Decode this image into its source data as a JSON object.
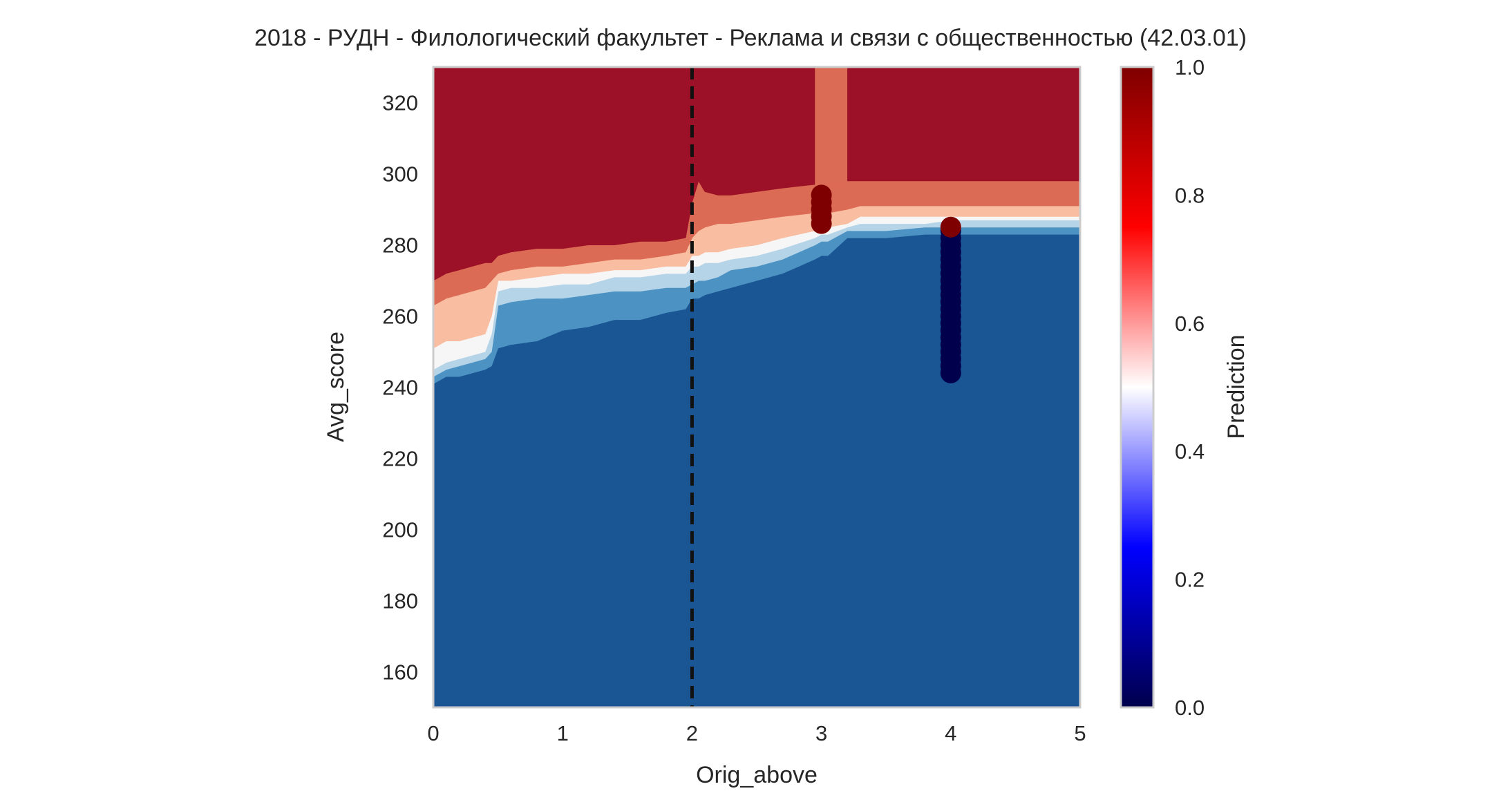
{
  "chart_data": {
    "type": "heatmap",
    "title": "2018 - РУДН - Филологический факультет - Реклама и связи с общественностью (42.03.01)",
    "xlabel": "Orig_above",
    "ylabel": "Avg_score",
    "xlim": [
      0,
      5
    ],
    "ylim": [
      150,
      330
    ],
    "xticks": [
      "0",
      "1",
      "2",
      "3",
      "4",
      "5"
    ],
    "yticks": [
      "160",
      "180",
      "200",
      "220",
      "240",
      "260",
      "280",
      "300",
      "320"
    ],
    "grid": false,
    "colormap": "seismic",
    "contour_palette": [
      "#1a5594",
      "#4c93c3",
      "#b6d4e8",
      "#f7f6f6",
      "#f9bda1",
      "#dc6b55",
      "#9c1127"
    ],
    "contour_levels": [
      0.0,
      0.286,
      0.429,
      0.5,
      0.571,
      0.714,
      0.857,
      1.0
    ],
    "region_boundaries": {
      "x": [
        0,
        0.05,
        0.1,
        0.2,
        0.3,
        0.4,
        0.45,
        0.5,
        0.6,
        0.8,
        1.0,
        1.2,
        1.4,
        1.6,
        1.8,
        1.95,
        2.0,
        2.05,
        2.1,
        2.2,
        2.3,
        2.5,
        2.7,
        2.95,
        3.0,
        3.05,
        3.2,
        3.3,
        3.5,
        3.8,
        4.0,
        4.3,
        4.7,
        5.0
      ],
      "prediction_0_286": [
        241,
        242,
        243,
        243,
        244,
        245,
        246,
        251,
        252,
        253,
        256,
        257,
        259,
        259,
        261,
        262,
        265,
        265,
        266,
        267,
        268,
        270,
        272,
        276,
        277,
        277,
        282,
        282,
        282,
        283,
        283,
        283,
        283,
        283
      ],
      "prediction_0_429": [
        243,
        244,
        245,
        246,
        247,
        248,
        250,
        263,
        264,
        265,
        265,
        266,
        267,
        267,
        268,
        268,
        269,
        270,
        270,
        271,
        273,
        274,
        276,
        280,
        281,
        281,
        284,
        284,
        284,
        285,
        285,
        285,
        285,
        285
      ],
      "prediction_0_500": [
        245,
        246,
        247,
        248,
        249,
        250,
        255,
        267,
        268,
        268,
        269,
        269,
        271,
        271,
        272,
        272,
        274,
        274,
        275,
        275,
        276,
        277,
        279,
        282,
        283,
        283,
        285,
        286,
        286,
        286,
        287,
        287,
        287,
        287
      ],
      "prediction_0_571": [
        251,
        252,
        253,
        253,
        254,
        255,
        260,
        270,
        270,
        271,
        272,
        272,
        273,
        273,
        274,
        274,
        277,
        277,
        278,
        278,
        279,
        280,
        282,
        284,
        284,
        285,
        286,
        288,
        288,
        288,
        288,
        288,
        288,
        288
      ],
      "prediction_0_714": [
        263,
        264,
        265,
        266,
        267,
        268,
        270,
        272,
        273,
        274,
        274,
        275,
        276,
        276,
        277,
        278,
        282,
        284,
        285,
        286,
        286,
        287,
        288,
        289,
        289,
        289,
        290,
        291,
        291,
        291,
        291,
        291,
        291,
        291
      ],
      "prediction_0_857": [
        270,
        271,
        272,
        273,
        274,
        275,
        275,
        277,
        278,
        279,
        279,
        280,
        280,
        281,
        281,
        282,
        292,
        298,
        295,
        294,
        294,
        295,
        296,
        297,
        297,
        297,
        298,
        298,
        298,
        298,
        298,
        298,
        298,
        298
      ]
    },
    "column_band": {
      "x_range": [
        2.95,
        3.2
      ],
      "from_prediction": 0.714,
      "to_prediction": 1.0,
      "color": "#dc6b55"
    },
    "threshold_line": {
      "x": 2,
      "style": "dashed",
      "color": "#111111"
    },
    "scatter_series": [
      {
        "x": 3,
        "y": [
          286,
          288,
          290,
          292,
          294
        ],
        "prediction": 1.0,
        "color": "#7f0000"
      },
      {
        "x": 4,
        "y": [
          244,
          246,
          248,
          250,
          252,
          254,
          256,
          258,
          260,
          262,
          264,
          266,
          268,
          270,
          272,
          274,
          276,
          278,
          280,
          282,
          284
        ],
        "prediction": 0.0,
        "color": "#00004c"
      },
      {
        "x": 4,
        "y": [
          285
        ],
        "prediction": 1.0,
        "color": "#7f0000"
      }
    ],
    "colorbar": {
      "label": "Prediction",
      "ticks": [
        "0.0",
        "0.2",
        "0.4",
        "0.6",
        "0.8",
        "1.0"
      ],
      "range": [
        0,
        1
      ],
      "stops": [
        "#00004c",
        "#0000ff",
        "#ffffff",
        "#ff0000",
        "#7f0000"
      ]
    }
  }
}
